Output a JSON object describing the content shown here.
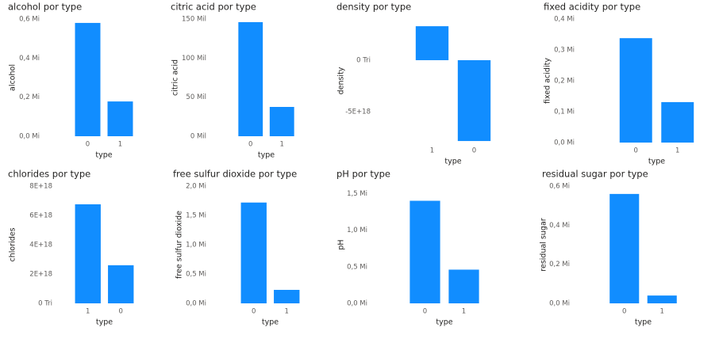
{
  "chart_data": [
    {
      "type": "bar",
      "title": "alcohol por type",
      "x_label": "type",
      "y_label": "alcohol",
      "categories": [
        "0",
        "1"
      ],
      "values": [
        580000,
        178000
      ],
      "color": "#118dff",
      "ylim": [
        0,
        600000
      ],
      "yticks": [
        {
          "value": 0,
          "label": "0,0 Mi"
        },
        {
          "value": 200000,
          "label": "0,2 Mi"
        },
        {
          "value": 400000,
          "label": "0,4 Mi"
        },
        {
          "value": 600000,
          "label": "0,6 Mi"
        }
      ]
    },
    {
      "type": "bar",
      "title": "citric acid por type",
      "x_label": "type",
      "y_label": "citric acid",
      "categories": [
        "0",
        "1"
      ],
      "values": [
        146000,
        37500
      ],
      "color": "#118dff",
      "ylim": [
        0,
        150000
      ],
      "yticks": [
        {
          "value": 0,
          "label": "0 Mil"
        },
        {
          "value": 50000,
          "label": "50 Mil"
        },
        {
          "value": 100000,
          "label": "100 Mil"
        },
        {
          "value": 150000,
          "label": "150 Mil"
        }
      ]
    },
    {
      "type": "bar",
      "title": "density por type",
      "x_label": "type",
      "y_label": "density",
      "categories": [
        "1",
        "0"
      ],
      "values": [
        3.3e+18,
        -7.85e+18
      ],
      "color": "#118dff",
      "ylim": [
        -8e+18,
        4e+18
      ],
      "yticks": [
        {
          "value": -5e+18,
          "label": "-5E+18"
        },
        {
          "value": 0,
          "label": "0 Tri"
        }
      ]
    },
    {
      "type": "bar",
      "title": "fixed acidity por type",
      "x_label": "type",
      "y_label": "fixed acidity",
      "categories": [
        "0",
        "1"
      ],
      "values": [
        338000,
        131000
      ],
      "color": "#118dff",
      "ylim": [
        0,
        400000
      ],
      "yticks": [
        {
          "value": 0,
          "label": "0,0 Mi"
        },
        {
          "value": 100000,
          "label": "0,1 Mi"
        },
        {
          "value": 200000,
          "label": "0,2 Mi"
        },
        {
          "value": 300000,
          "label": "0,3 Mi"
        },
        {
          "value": 400000,
          "label": "0,4 Mi"
        }
      ]
    },
    {
      "type": "bar",
      "title": "chlorides por type",
      "x_label": "type",
      "y_label": "chlorides",
      "categories": [
        "1",
        "0"
      ],
      "values": [
        6.76e+18,
        2.6e+18
      ],
      "color": "#118dff",
      "ylim": [
        0,
        8e+18
      ],
      "yticks": [
        {
          "value": 0,
          "label": "0 Tri"
        },
        {
          "value": 2e+18,
          "label": "2E+18"
        },
        {
          "value": 4e+18,
          "label": "4E+18"
        },
        {
          "value": 6e+18,
          "label": "6E+18"
        },
        {
          "value": 8e+18,
          "label": "8E+18"
        }
      ]
    },
    {
      "type": "bar",
      "title": "free sulfur dioxide por type",
      "x_label": "type",
      "y_label": "free sulfur dioxide",
      "categories": [
        "0",
        "1"
      ],
      "values": [
        1720000,
        230000
      ],
      "color": "#118dff",
      "ylim": [
        0,
        2000000
      ],
      "yticks": [
        {
          "value": 0,
          "label": "0,0 Mi"
        },
        {
          "value": 500000,
          "label": "0,5 Mi"
        },
        {
          "value": 1000000,
          "label": "1,0 Mi"
        },
        {
          "value": 1500000,
          "label": "1,5 Mi"
        },
        {
          "value": 2000000,
          "label": "2,0 Mi"
        }
      ]
    },
    {
      "type": "bar",
      "title": "pH por type",
      "x_label": "type",
      "y_label": "pH",
      "categories": [
        "0",
        "1"
      ],
      "values": [
        1400000,
        460000
      ],
      "color": "#118dff",
      "ylim": [
        0,
        1600000
      ],
      "yticks": [
        {
          "value": 0,
          "label": "0,0 Mi"
        },
        {
          "value": 500000,
          "label": "0,5 Mi"
        },
        {
          "value": 1000000,
          "label": "1,0 Mi"
        },
        {
          "value": 1500000,
          "label": "1,5 Mi"
        }
      ]
    },
    {
      "type": "bar",
      "title": "residual sugar por type",
      "x_label": "type",
      "y_label": "residual sugar",
      "categories": [
        "0",
        "1"
      ],
      "values": [
        560000,
        40000
      ],
      "color": "#118dff",
      "ylim": [
        0,
        600000
      ],
      "yticks": [
        {
          "value": 0,
          "label": "0,0 Mi"
        },
        {
          "value": 200000,
          "label": "0,2 Mi"
        },
        {
          "value": 400000,
          "label": "0,4 Mi"
        },
        {
          "value": 600000,
          "label": "0,6 Mi"
        }
      ]
    }
  ]
}
